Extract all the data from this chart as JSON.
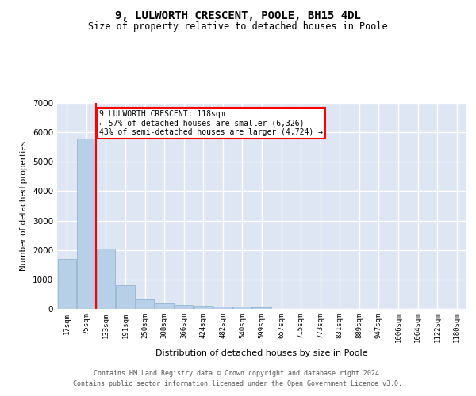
{
  "title": "9, LULWORTH CRESCENT, POOLE, BH15 4DL",
  "subtitle": "Size of property relative to detached houses in Poole",
  "xlabel": "Distribution of detached houses by size in Poole",
  "ylabel": "Number of detached properties",
  "categories": [
    "17sqm",
    "75sqm",
    "133sqm",
    "191sqm",
    "250sqm",
    "308sqm",
    "366sqm",
    "424sqm",
    "482sqm",
    "540sqm",
    "599sqm",
    "657sqm",
    "715sqm",
    "773sqm",
    "831sqm",
    "889sqm",
    "947sqm",
    "1006sqm",
    "1064sqm",
    "1122sqm",
    "1180sqm"
  ],
  "values": [
    1700,
    5800,
    2050,
    820,
    310,
    190,
    140,
    95,
    80,
    70,
    60,
    0,
    0,
    0,
    0,
    0,
    0,
    0,
    0,
    0,
    0
  ],
  "bar_color": "#b8cfe8",
  "bar_edge_color": "#8aaec8",
  "background_color": "#dde6f2",
  "grid_color": "#ffffff",
  "property_line_color": "red",
  "annotation_text": "9 LULWORTH CRESCENT: 118sqm\n← 57% of detached houses are smaller (6,326)\n43% of semi-detached houses are larger (4,724) →",
  "ylim": [
    0,
    7000
  ],
  "yticks": [
    0,
    1000,
    2000,
    3000,
    4000,
    5000,
    6000,
    7000
  ],
  "footer_line1": "Contains HM Land Registry data © Crown copyright and database right 2024.",
  "footer_line2": "Contains public sector information licensed under the Open Government Licence v3.0."
}
